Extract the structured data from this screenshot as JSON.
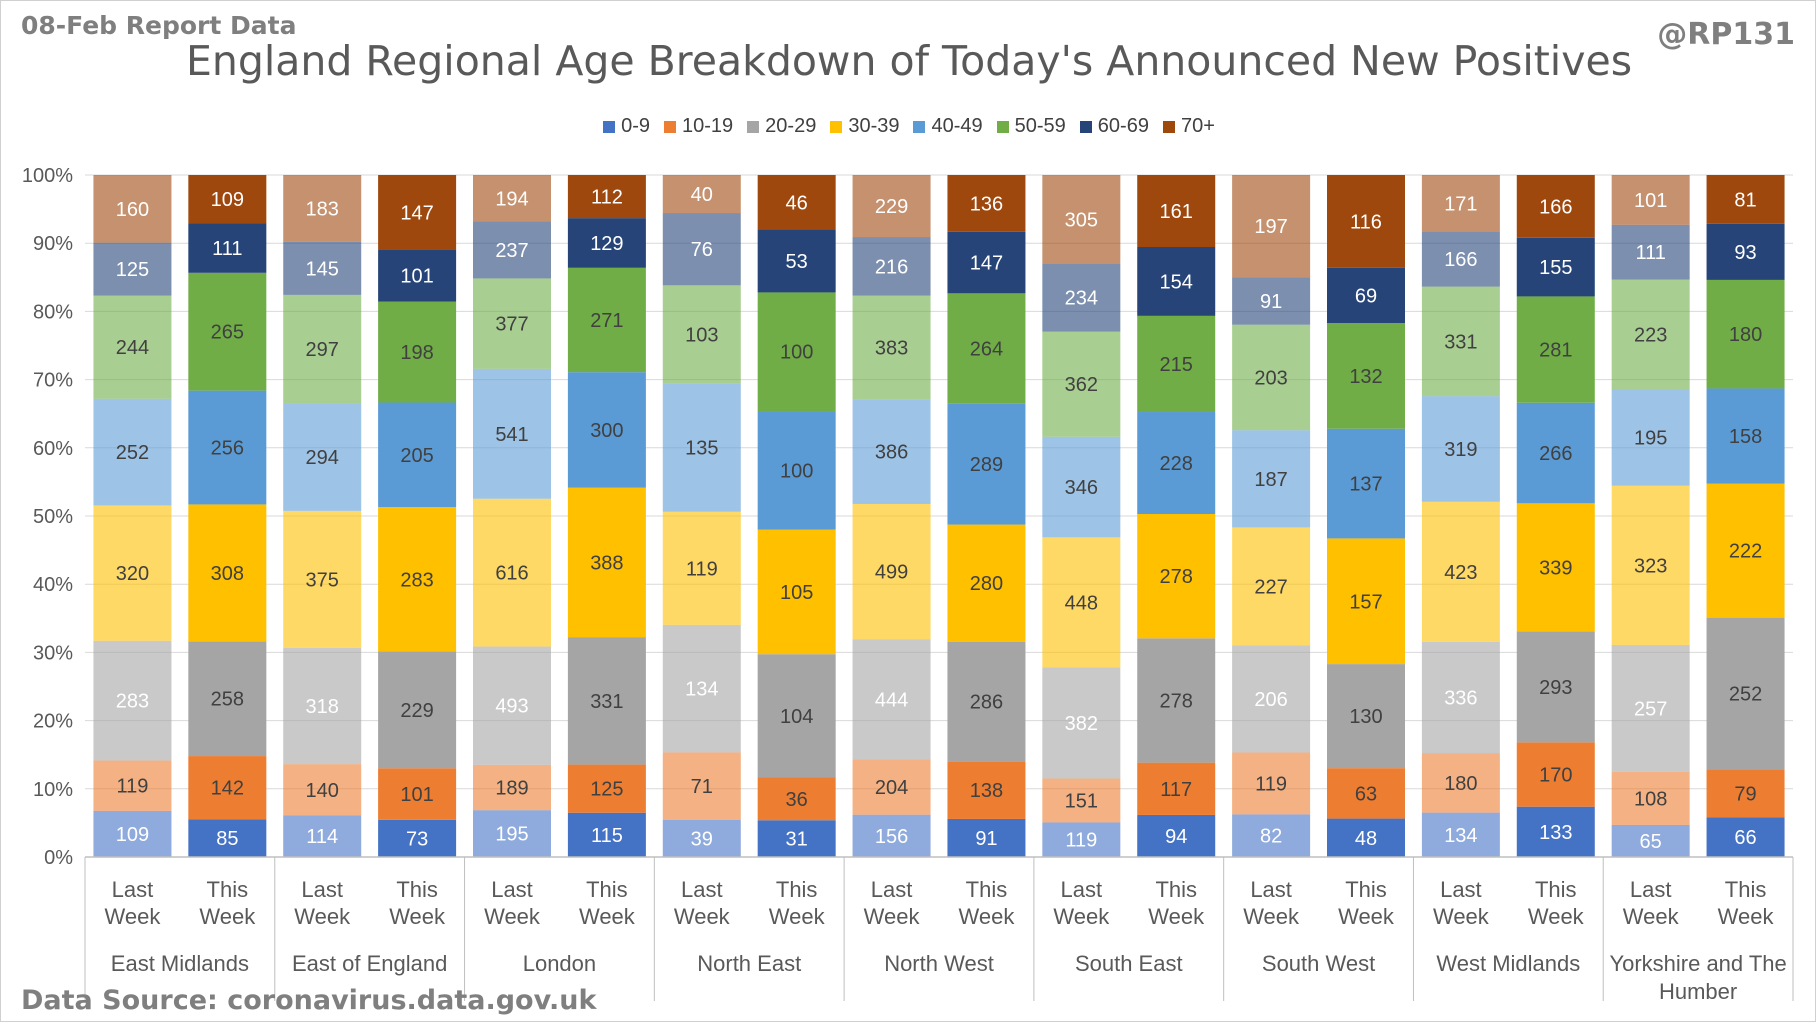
{
  "header": {
    "report_date": "08-Feb Report Data",
    "handle": "@RP131",
    "data_source": "Data Source: coronavirus.data.gov.uk"
  },
  "chart_data": {
    "type": "bar",
    "stacked": true,
    "normalized": true,
    "title": "England Regional Age Breakdown of Today's Announced New Positives",
    "xlabel": "",
    "ylabel": "",
    "ylim": [
      0,
      100
    ],
    "yticks": [
      "0%",
      "10%",
      "20%",
      "30%",
      "40%",
      "50%",
      "60%",
      "70%",
      "80%",
      "90%",
      "100%"
    ],
    "grid": true,
    "legend_position": "top",
    "group_labels": [
      "Last Week",
      "This Week"
    ],
    "regions": [
      "East Midlands",
      "East of England",
      "London",
      "North East",
      "North West",
      "South East",
      "South West",
      "West Midlands",
      "Yorkshire and The Humber"
    ],
    "categories": [
      "East Midlands - Last Week",
      "East Midlands - This Week",
      "East of England - Last Week",
      "East of England - This Week",
      "London - Last Week",
      "London - This Week",
      "North East - Last Week",
      "North East - This Week",
      "North West - Last Week",
      "North West - This Week",
      "South East - Last Week",
      "South East - This Week",
      "South West - Last Week",
      "South West - This Week",
      "West Midlands - Last Week",
      "West Midlands - This Week",
      "Yorkshire and The Humber - Last Week",
      "Yorkshire and The Humber - This Week"
    ],
    "series": [
      {
        "name": "0-9",
        "color": "#4472c4",
        "values": [
          109,
          85,
          114,
          73,
          195,
          115,
          39,
          31,
          156,
          91,
          119,
          94,
          82,
          48,
          134,
          133,
          65,
          66
        ]
      },
      {
        "name": "10-19",
        "color": "#ed7d31",
        "values": [
          119,
          142,
          140,
          101,
          189,
          125,
          71,
          36,
          204,
          138,
          151,
          117,
          119,
          63,
          180,
          170,
          108,
          79
        ]
      },
      {
        "name": "20-29",
        "color": "#a5a5a5",
        "values": [
          283,
          258,
          318,
          229,
          493,
          331,
          134,
          104,
          444,
          286,
          382,
          278,
          206,
          130,
          336,
          293,
          257,
          252
        ]
      },
      {
        "name": "30-39",
        "color": "#ffc000",
        "values": [
          320,
          308,
          375,
          283,
          616,
          388,
          119,
          105,
          499,
          280,
          448,
          278,
          227,
          157,
          423,
          339,
          323,
          222
        ]
      },
      {
        "name": "40-49",
        "color": "#5b9bd5",
        "values": [
          252,
          256,
          294,
          205,
          541,
          300,
          135,
          100,
          386,
          289,
          346,
          228,
          187,
          137,
          319,
          266,
          195,
          158
        ]
      },
      {
        "name": "50-59",
        "color": "#70ad47",
        "values": [
          244,
          265,
          297,
          198,
          377,
          271,
          103,
          100,
          383,
          264,
          362,
          215,
          203,
          132,
          331,
          281,
          223,
          180
        ]
      },
      {
        "name": "60-69",
        "color": "#264478",
        "values": [
          125,
          111,
          145,
          101,
          237,
          129,
          76,
          53,
          216,
          147,
          234,
          154,
          91,
          69,
          166,
          155,
          111,
          93
        ]
      },
      {
        "name": "70+",
        "color": "#9e480e",
        "values": [
          160,
          109,
          183,
          147,
          194,
          112,
          40,
          46,
          229,
          136,
          305,
          161,
          197,
          116,
          171,
          166,
          101,
          81
        ]
      }
    ],
    "colors": {
      "last_week_opacity": 0.6,
      "grid": "#d9d9d9",
      "axis_text": "#595959",
      "label_dark": "#404040",
      "label_light": "#ffffff"
    }
  }
}
